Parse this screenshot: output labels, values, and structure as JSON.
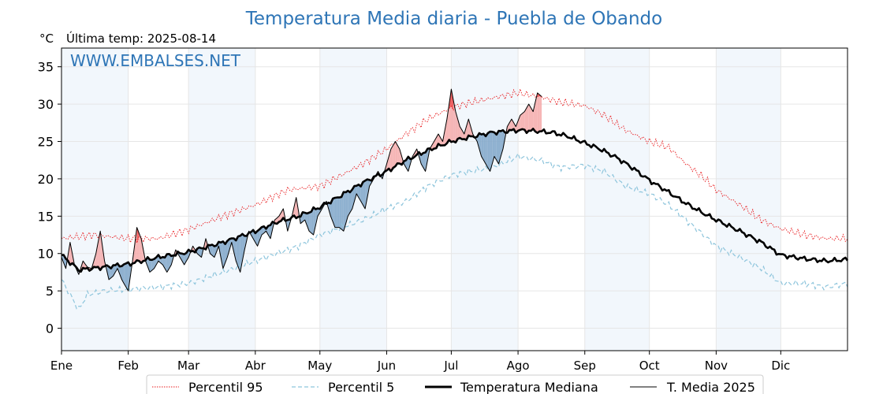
{
  "chart_data": {
    "type": "line",
    "title": "Temperatura Media diaria - Puebla de Obando",
    "unit_label": "°C",
    "last_temp_label": "Última temp: 2025-08-14",
    "watermark": "WWW.EMBALSES.NET",
    "ylim": [
      -3,
      37.5
    ],
    "yticks": [
      0,
      5,
      10,
      15,
      20,
      25,
      30,
      35
    ],
    "xlim": [
      0,
      365
    ],
    "months": [
      {
        "label": "Ene",
        "day": 0
      },
      {
        "label": "Feb",
        "day": 31
      },
      {
        "label": "Mar",
        "day": 59
      },
      {
        "label": "Abr",
        "day": 90
      },
      {
        "label": "May",
        "day": 120
      },
      {
        "label": "Jun",
        "day": 151
      },
      {
        "label": "Jul",
        "day": 181
      },
      {
        "label": "Ago",
        "day": 212
      },
      {
        "label": "Sep",
        "day": 243
      },
      {
        "label": "Oct",
        "day": 273
      },
      {
        "label": "Nov",
        "day": 304
      },
      {
        "label": "Dic",
        "day": 334
      }
    ],
    "grid": true,
    "legend_position": "bottom-center",
    "series_meta": [
      {
        "name": "Percentil 95",
        "color": "#e8191c",
        "style": "dotted"
      },
      {
        "name": "Percentil 5",
        "color": "#8ec5dc",
        "style": "dashed"
      },
      {
        "name": "Temperatura Mediana",
        "color": "#000000",
        "style": "bold"
      },
      {
        "name": "T. Media 2025",
        "color": "#000000",
        "style": "thin"
      }
    ],
    "fill_colors": {
      "above": "#f4a9a9",
      "below": "#7ea4c8",
      "above_p95": "#e8191c"
    },
    "median_keypoints": [
      [
        0,
        9.8
      ],
      [
        8,
        7.8
      ],
      [
        20,
        8.2
      ],
      [
        31,
        8.6
      ],
      [
        45,
        9.5
      ],
      [
        59,
        10.2
      ],
      [
        75,
        11.5
      ],
      [
        90,
        13
      ],
      [
        100,
        14.2
      ],
      [
        110,
        15
      ],
      [
        120,
        16.2
      ],
      [
        130,
        17.8
      ],
      [
        140,
        19.5
      ],
      [
        151,
        21
      ],
      [
        160,
        22.5
      ],
      [
        170,
        23.8
      ],
      [
        181,
        25
      ],
      [
        190,
        25.6
      ],
      [
        200,
        26.2
      ],
      [
        212,
        26.5
      ],
      [
        220,
        26.4
      ],
      [
        228,
        26.2
      ],
      [
        235,
        25.7
      ],
      [
        243,
        24.8
      ],
      [
        250,
        24
      ],
      [
        258,
        22.8
      ],
      [
        265,
        21.5
      ],
      [
        273,
        19.8
      ],
      [
        282,
        18.2
      ],
      [
        290,
        16.7
      ],
      [
        298,
        15.4
      ],
      [
        304,
        14.5
      ],
      [
        315,
        13
      ],
      [
        325,
        11.5
      ],
      [
        334,
        9.8
      ],
      [
        345,
        9.3
      ],
      [
        355,
        9
      ],
      [
        365,
        9.2
      ]
    ],
    "p95_keypoints": [
      [
        0,
        12
      ],
      [
        15,
        12.5
      ],
      [
        31,
        12
      ],
      [
        45,
        12
      ],
      [
        59,
        13.2
      ],
      [
        75,
        15
      ],
      [
        90,
        16.5
      ],
      [
        105,
        18.5
      ],
      [
        120,
        19
      ],
      [
        130,
        20.5
      ],
      [
        140,
        22
      ],
      [
        151,
        24
      ],
      [
        160,
        26
      ],
      [
        170,
        28
      ],
      [
        181,
        29.5
      ],
      [
        190,
        30.2
      ],
      [
        200,
        30.8
      ],
      [
        212,
        31.5
      ],
      [
        222,
        31
      ],
      [
        232,
        30.2
      ],
      [
        243,
        29.8
      ],
      [
        252,
        28.5
      ],
      [
        262,
        26.5
      ],
      [
        273,
        25
      ],
      [
        282,
        24.2
      ],
      [
        290,
        22
      ],
      [
        298,
        20.2
      ],
      [
        304,
        18.5
      ],
      [
        315,
        16.5
      ],
      [
        325,
        14.5
      ],
      [
        334,
        13.3
      ],
      [
        345,
        12.5
      ],
      [
        355,
        12
      ],
      [
        365,
        12
      ]
    ],
    "p5_keypoints": [
      [
        0,
        6.5
      ],
      [
        5,
        4
      ],
      [
        8,
        2.5
      ],
      [
        12,
        4.5
      ],
      [
        20,
        5
      ],
      [
        31,
        5.2
      ],
      [
        45,
        5.5
      ],
      [
        59,
        6
      ],
      [
        75,
        7.5
      ],
      [
        90,
        9
      ],
      [
        100,
        10
      ],
      [
        110,
        11
      ],
      [
        120,
        12.5
      ],
      [
        130,
        13.5
      ],
      [
        140,
        14.5
      ],
      [
        151,
        16
      ],
      [
        160,
        17
      ],
      [
        170,
        19
      ],
      [
        181,
        20.5
      ],
      [
        190,
        21
      ],
      [
        200,
        21.5
      ],
      [
        212,
        23
      ],
      [
        222,
        22.5
      ],
      [
        232,
        21.5
      ],
      [
        243,
        21.8
      ],
      [
        252,
        21
      ],
      [
        262,
        19
      ],
      [
        273,
        18
      ],
      [
        282,
        16.5
      ],
      [
        290,
        14.5
      ],
      [
        298,
        12.5
      ],
      [
        304,
        11
      ],
      [
        315,
        9.5
      ],
      [
        325,
        8
      ],
      [
        334,
        6
      ],
      [
        345,
        6
      ],
      [
        355,
        5.5
      ],
      [
        365,
        6
      ]
    ],
    "t2025_keypoints": [
      [
        0,
        9.5
      ],
      [
        2,
        8
      ],
      [
        4,
        11.5
      ],
      [
        6,
        8.5
      ],
      [
        8,
        7.2
      ],
      [
        10,
        9
      ],
      [
        12,
        8.2
      ],
      [
        14,
        8
      ],
      [
        16,
        10
      ],
      [
        18,
        13
      ],
      [
        20,
        9
      ],
      [
        22,
        6.5
      ],
      [
        24,
        7
      ],
      [
        26,
        8
      ],
      [
        28,
        6.5
      ],
      [
        31,
        5
      ],
      [
        33,
        9
      ],
      [
        35,
        13.5
      ],
      [
        37,
        12
      ],
      [
        39,
        9
      ],
      [
        41,
        7.5
      ],
      [
        43,
        8
      ],
      [
        45,
        9
      ],
      [
        47,
        8.5
      ],
      [
        49,
        7.5
      ],
      [
        51,
        8.5
      ],
      [
        53,
        10.5
      ],
      [
        55,
        9.5
      ],
      [
        57,
        8.5
      ],
      [
        59,
        9.5
      ],
      [
        61,
        11
      ],
      [
        63,
        10
      ],
      [
        65,
        9.5
      ],
      [
        67,
        12
      ],
      [
        69,
        10
      ],
      [
        71,
        9.5
      ],
      [
        73,
        11
      ],
      [
        75,
        8
      ],
      [
        77,
        9.5
      ],
      [
        79,
        11.5
      ],
      [
        81,
        9
      ],
      [
        83,
        7.5
      ],
      [
        85,
        10.5
      ],
      [
        87,
        13
      ],
      [
        89,
        12
      ],
      [
        91,
        11
      ],
      [
        93,
        12.5
      ],
      [
        95,
        13
      ],
      [
        97,
        12
      ],
      [
        99,
        14.5
      ],
      [
        101,
        15
      ],
      [
        103,
        16
      ],
      [
        105,
        13
      ],
      [
        107,
        15
      ],
      [
        109,
        17.5
      ],
      [
        111,
        14
      ],
      [
        113,
        14.5
      ],
      [
        115,
        13
      ],
      [
        117,
        12.5
      ],
      [
        119,
        15
      ],
      [
        121,
        16
      ],
      [
        123,
        17
      ],
      [
        125,
        15
      ],
      [
        127,
        13.5
      ],
      [
        129,
        13.5
      ],
      [
        131,
        13
      ],
      [
        133,
        15
      ],
      [
        135,
        16
      ],
      [
        137,
        18
      ],
      [
        139,
        17
      ],
      [
        141,
        16
      ],
      [
        143,
        19
      ],
      [
        145,
        20
      ],
      [
        147,
        21
      ],
      [
        149,
        20
      ],
      [
        151,
        22
      ],
      [
        153,
        24
      ],
      [
        155,
        25
      ],
      [
        157,
        24
      ],
      [
        159,
        22
      ],
      [
        161,
        21
      ],
      [
        163,
        23
      ],
      [
        165,
        24
      ],
      [
        167,
        22
      ],
      [
        169,
        21
      ],
      [
        171,
        24
      ],
      [
        173,
        25
      ],
      [
        175,
        26
      ],
      [
        177,
        25
      ],
      [
        179,
        28
      ],
      [
        181,
        32
      ],
      [
        183,
        29
      ],
      [
        185,
        27
      ],
      [
        187,
        26
      ],
      [
        189,
        28
      ],
      [
        191,
        26
      ],
      [
        193,
        25
      ],
      [
        195,
        23
      ],
      [
        197,
        22
      ],
      [
        199,
        21
      ],
      [
        201,
        23
      ],
      [
        203,
        22
      ],
      [
        205,
        24
      ],
      [
        207,
        27
      ],
      [
        209,
        28
      ],
      [
        211,
        27
      ],
      [
        213,
        28.5
      ],
      [
        215,
        29
      ],
      [
        217,
        30
      ],
      [
        219,
        29
      ],
      [
        221,
        31.5
      ],
      [
        223,
        31
      ]
    ]
  },
  "legend": {
    "p95_label": "Percentil 95",
    "p5_label": "Percentil 5",
    "median_label": "Temperatura Mediana",
    "t2025_label": "T. Media 2025"
  }
}
